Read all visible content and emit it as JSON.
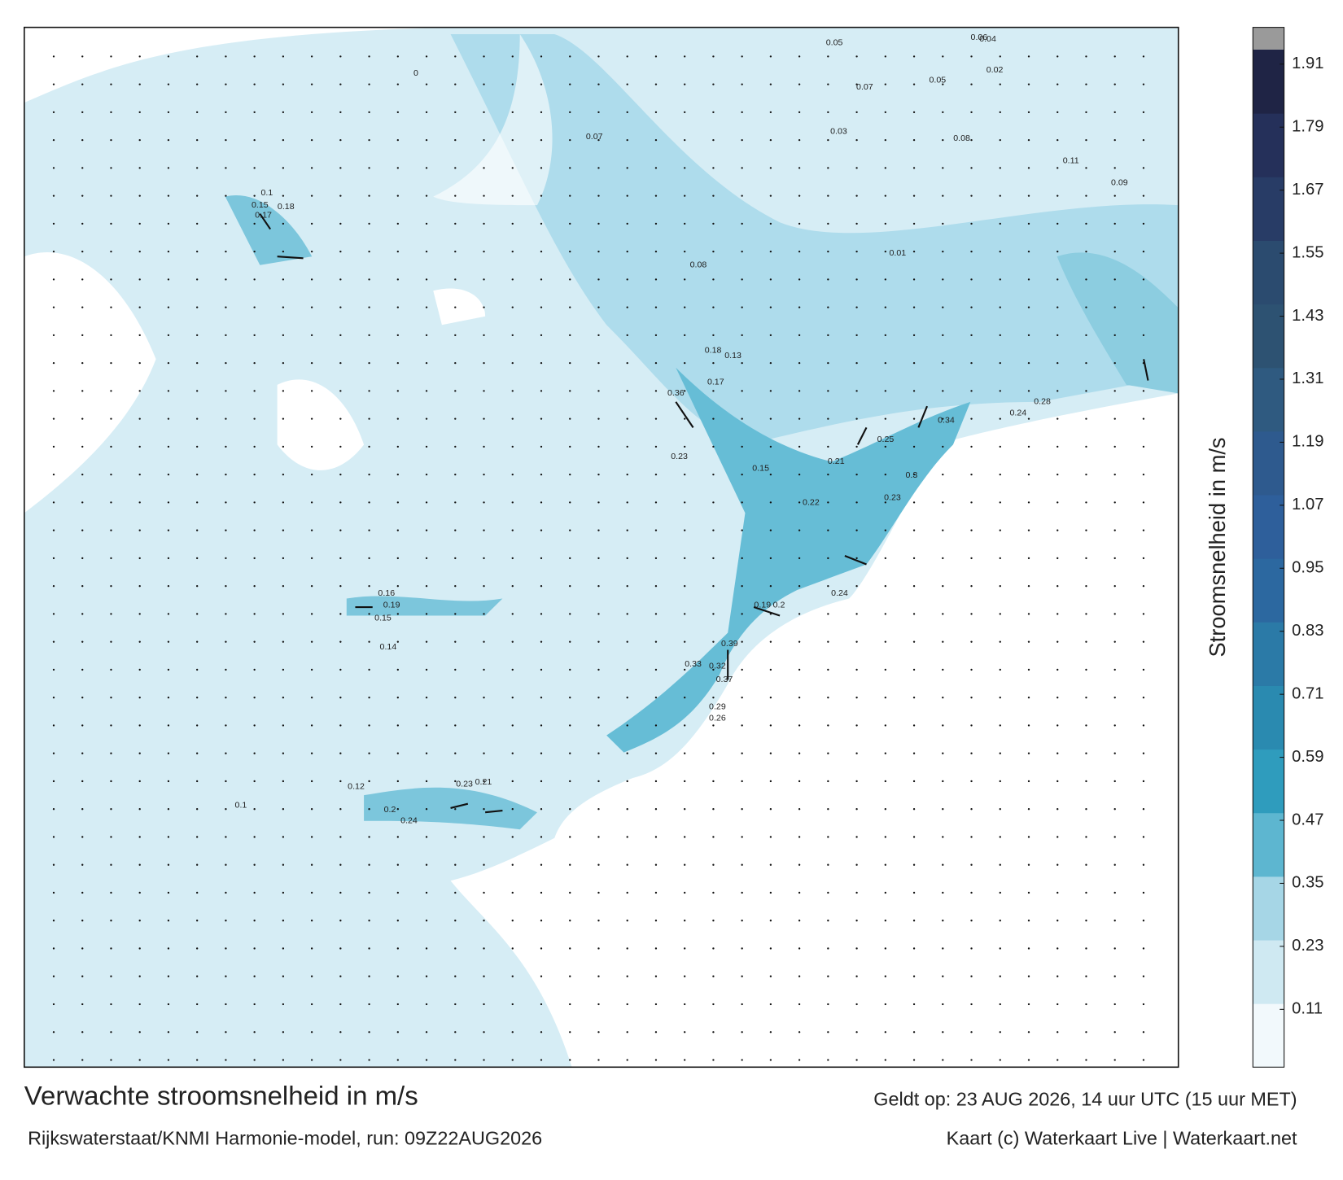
{
  "map": {
    "title": "Verwachte stroomsnelheid in m/s",
    "subtitle": "Rijkswaterstaat/KNMI Harmonie-model, run: 09Z22AUG2026",
    "valid_time": "Geldt op: 23 AUG 2026, 14 uur UTC (15 uur MET)",
    "credit": "Kaart (c) Waterkaart Live | Waterkaart.net",
    "colorbar": {
      "label": "Stroomsnelheid in m/s",
      "lim": [
        0,
        1.98
      ],
      "ticks": [
        0.11,
        0.23,
        0.35,
        0.47,
        0.59,
        0.71,
        0.83,
        0.95,
        1.07,
        1.19,
        1.31,
        1.43,
        1.55,
        1.67,
        1.79,
        1.91
      ],
      "colors": [
        "#f2f9fc",
        "#cfe9f2",
        "#a6d6e6",
        "#5db6d0",
        "#2f9cbd",
        "#2a8ab0",
        "#2b7aa7",
        "#2c68a0",
        "#2e5f9b",
        "#2e5a8e",
        "#2f5a80",
        "#2d5272",
        "#2b4b6f",
        "#283c66",
        "#25305a",
        "#1f2445"
      ],
      "cap_color": "#9a9a9a"
    },
    "map_labels": [
      0.36,
      0.34,
      0.39,
      0.37,
      0.32,
      0.33,
      0.3,
      0.28,
      0.24,
      0.23,
      0.29,
      0.26,
      0.22,
      0.21,
      0.25,
      0.23,
      0.19,
      0.2,
      0.24,
      0.15,
      0.18,
      0.13,
      0.17,
      0.1,
      0.17,
      0.18,
      0.15,
      0.16,
      0.19,
      0.15,
      0.14,
      0.23,
      0.21,
      0.24,
      0.2,
      0.12,
      0.1,
      0.06,
      0.05,
      0.04,
      0.07,
      0.05,
      0.08,
      0.01,
      0.02,
      0.03,
      0.09,
      0.11,
      0.07,
      0.08,
      0
    ]
  }
}
